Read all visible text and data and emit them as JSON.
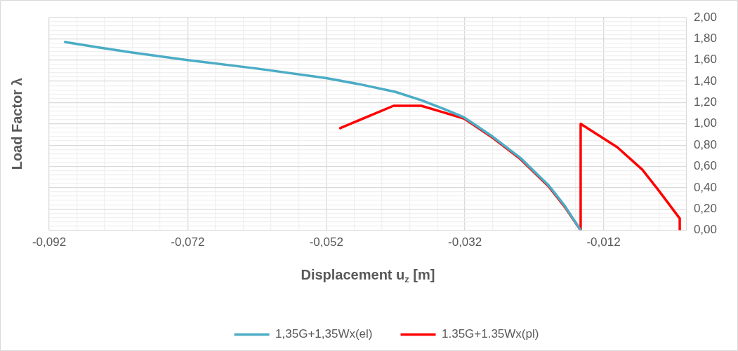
{
  "chart_data": {
    "type": "line",
    "xlabel": "Displacement u$_{z}$ [m]",
    "ylabel": "Load Factor λ",
    "xlim": [
      -0.092,
      0
    ],
    "ylim": [
      0,
      2
    ],
    "xticks": [
      {
        "value": -0.092,
        "label": "-0,092"
      },
      {
        "value": -0.088,
        "label": null
      },
      {
        "value": -0.084,
        "label": null
      },
      {
        "value": -0.08,
        "label": null
      },
      {
        "value": -0.076,
        "label": null
      },
      {
        "value": -0.072,
        "label": "-0,072"
      },
      {
        "value": -0.068,
        "label": null
      },
      {
        "value": -0.064,
        "label": null
      },
      {
        "value": -0.06,
        "label": null
      },
      {
        "value": -0.056,
        "label": null
      },
      {
        "value": -0.052,
        "label": "-0,052"
      },
      {
        "value": -0.048,
        "label": null
      },
      {
        "value": -0.044,
        "label": null
      },
      {
        "value": -0.04,
        "label": null
      },
      {
        "value": -0.036,
        "label": null
      },
      {
        "value": -0.032,
        "label": "-0,032"
      },
      {
        "value": -0.028,
        "label": null
      },
      {
        "value": -0.024,
        "label": null
      },
      {
        "value": -0.02,
        "label": null
      },
      {
        "value": -0.016,
        "label": null
      },
      {
        "value": -0.012,
        "label": "-0,012"
      },
      {
        "value": -0.008,
        "label": null
      },
      {
        "value": -0.004,
        "label": null
      },
      {
        "value": 0,
        "label": null
      }
    ],
    "yticks": [
      {
        "value": 0,
        "label": "0,00"
      },
      {
        "value": 0.04,
        "label": null
      },
      {
        "value": 0.08,
        "label": null
      },
      {
        "value": 0.12,
        "label": null
      },
      {
        "value": 0.16,
        "label": null
      },
      {
        "value": 0.2,
        "label": "0,20"
      },
      {
        "value": 0.24,
        "label": null
      },
      {
        "value": 0.28,
        "label": null
      },
      {
        "value": 0.32,
        "label": null
      },
      {
        "value": 0.36,
        "label": null
      },
      {
        "value": 0.4,
        "label": "0,40"
      },
      {
        "value": 0.44,
        "label": null
      },
      {
        "value": 0.48,
        "label": null
      },
      {
        "value": 0.52,
        "label": null
      },
      {
        "value": 0.56,
        "label": null
      },
      {
        "value": 0.6,
        "label": "0,60"
      },
      {
        "value": 0.64,
        "label": null
      },
      {
        "value": 0.68,
        "label": null
      },
      {
        "value": 0.72,
        "label": null
      },
      {
        "value": 0.76,
        "label": null
      },
      {
        "value": 0.8,
        "label": "0,80"
      },
      {
        "value": 0.84,
        "label": null
      },
      {
        "value": 0.88,
        "label": null
      },
      {
        "value": 0.92,
        "label": null
      },
      {
        "value": 0.96,
        "label": null
      },
      {
        "value": 1,
        "label": "1,00"
      },
      {
        "value": 1.04,
        "label": null
      },
      {
        "value": 1.08,
        "label": null
      },
      {
        "value": 1.12,
        "label": null
      },
      {
        "value": 1.16,
        "label": null
      },
      {
        "value": 1.2,
        "label": "1,20"
      },
      {
        "value": 1.24,
        "label": null
      },
      {
        "value": 1.28,
        "label": null
      },
      {
        "value": 1.32,
        "label": null
      },
      {
        "value": 1.36,
        "label": null
      },
      {
        "value": 1.4,
        "label": "1,40"
      },
      {
        "value": 1.44,
        "label": null
      },
      {
        "value": 1.48,
        "label": null
      },
      {
        "value": 1.52,
        "label": null
      },
      {
        "value": 1.56,
        "label": null
      },
      {
        "value": 1.6,
        "label": "1,60"
      },
      {
        "value": 1.64,
        "label": null
      },
      {
        "value": 1.68,
        "label": null
      },
      {
        "value": 1.72,
        "label": null
      },
      {
        "value": 1.76,
        "label": null
      },
      {
        "value": 1.8,
        "label": "1,80"
      },
      {
        "value": 1.84,
        "label": null
      },
      {
        "value": 1.88,
        "label": null
      },
      {
        "value": 1.92,
        "label": null
      },
      {
        "value": 1.96,
        "label": null
      },
      {
        "value": 2,
        "label": "2,00"
      }
    ],
    "grid": true,
    "legend": "bottom",
    "marker": "none",
    "line_style": "solid",
    "series": [
      {
        "name": "1,35G+1,35Wx(el)",
        "color": "#4bacc6",
        "x": [
          -0.0897,
          -0.085,
          -0.08,
          -0.072,
          -0.062,
          -0.052,
          -0.047,
          -0.042,
          -0.0382,
          -0.035,
          -0.0321,
          -0.028,
          -0.024,
          -0.0199,
          -0.0176,
          -0.0153
        ],
        "values": [
          1.77,
          1.72,
          1.67,
          1.6,
          1.52,
          1.43,
          1.37,
          1.3,
          1.22,
          1.14,
          1.06,
          0.88,
          0.68,
          0.42,
          0.23,
          0
        ]
      },
      {
        "name": "1.35G+1.35Wx(pl)",
        "color": "#ff0000",
        "x": [
          -0.05,
          -0.0423,
          -0.0383,
          -0.0357,
          -0.0321,
          -0.028,
          -0.024,
          -0.0199,
          -0.0176,
          -0.0153,
          -0.0153,
          -0.01,
          -0.0064,
          -0.004,
          -0.001,
          -0.001
        ],
        "values": [
          0.96,
          1.17,
          1.17,
          1.12,
          1.05,
          0.87,
          0.67,
          0.41,
          0.22,
          0,
          1,
          0.78,
          0.57,
          0.37,
          0.11,
          0
        ]
      }
    ]
  }
}
